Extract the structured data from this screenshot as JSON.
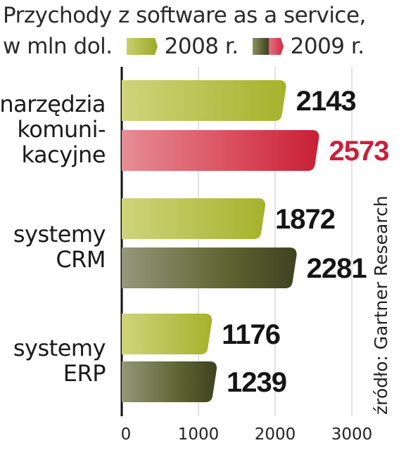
{
  "header": {
    "title_line1": "Przychody z software as a service,",
    "unit": "w mln dol.",
    "legend": [
      {
        "label": "2008 r.",
        "color": "#b7c03c"
      },
      {
        "label": "2009 r.",
        "color": "#555a2c"
      }
    ]
  },
  "source": "źródło: Gartner Research",
  "chart_data": {
    "type": "bar",
    "orientation": "horizontal",
    "categories": [
      [
        "narzędzia",
        "komuni-",
        "kacyjne"
      ],
      [
        "systemy",
        "CRM"
      ],
      [
        "systemy",
        "ERP"
      ]
    ],
    "series": [
      {
        "name": "2008 r.",
        "values": [
          2143,
          1872,
          1176
        ],
        "color": "#b7c03c"
      },
      {
        "name": "2009 r.",
        "values": [
          2573,
          2281,
          1239
        ],
        "color": "#555a2c"
      }
    ],
    "highlight": {
      "category_index": 0,
      "series_index": 1,
      "color": "#d4283f"
    },
    "xlim": [
      0,
      3000
    ],
    "xticks": [
      0,
      1000,
      2000,
      3000
    ],
    "grid": true
  }
}
